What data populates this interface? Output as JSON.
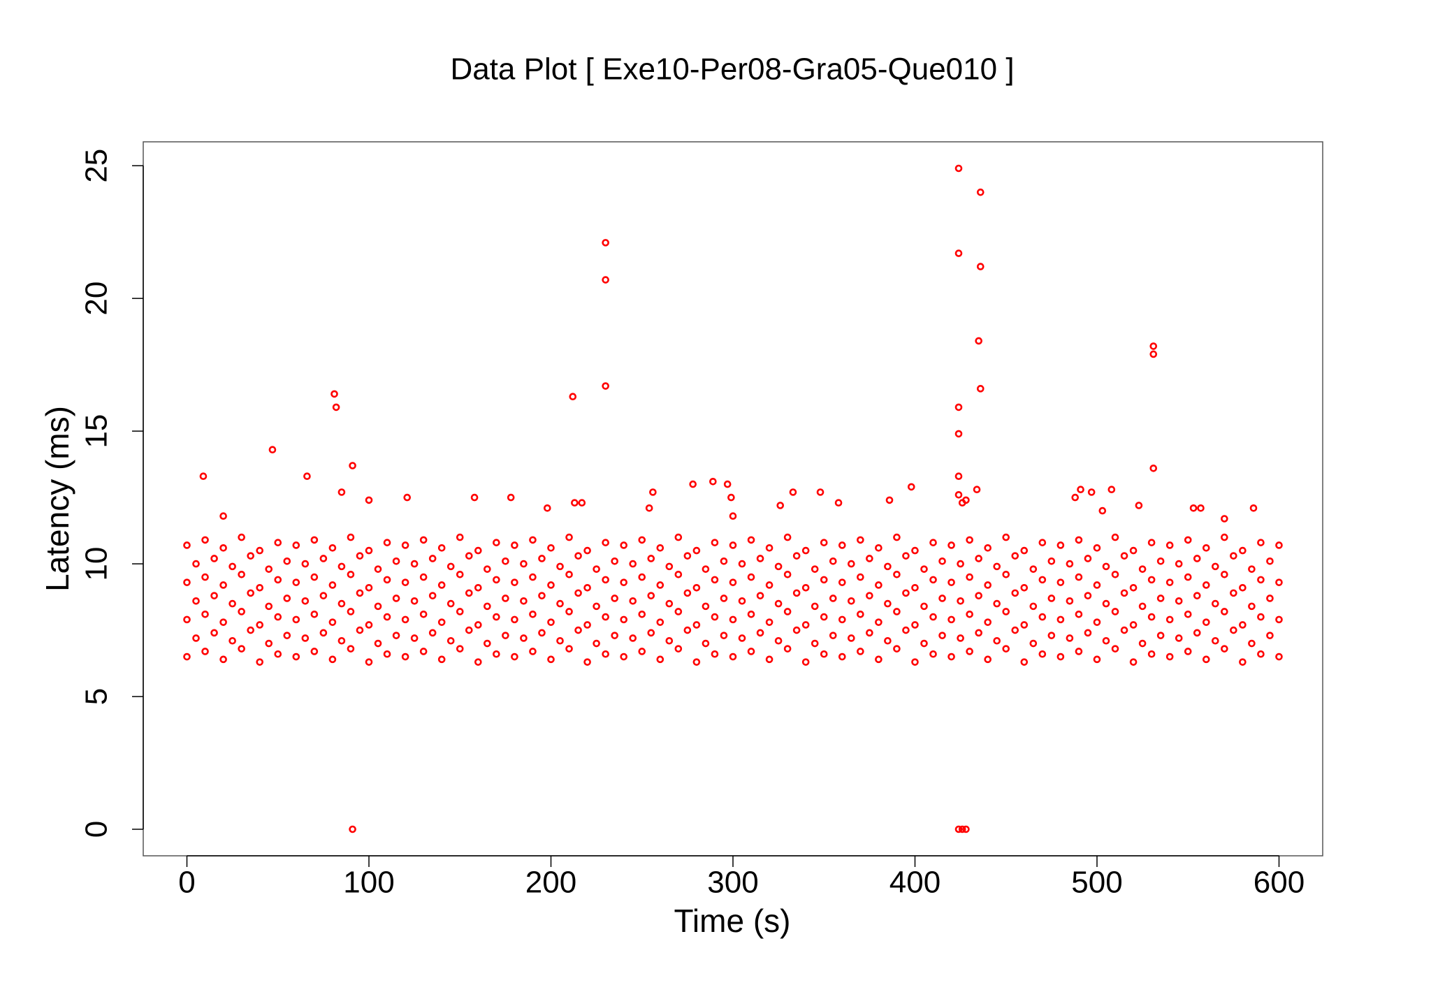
{
  "chart_data": {
    "type": "scatter",
    "title": "Data Plot [ Exe10-Per08-Gra05-Que010 ]",
    "xlabel": "Time (s)",
    "ylabel": "Latency (ms)",
    "color": "#ff0000",
    "xlim": [
      -24,
      624
    ],
    "ylim": [
      -1,
      25.9
    ],
    "xticks": [
      0,
      100,
      200,
      300,
      400,
      500,
      600
    ],
    "yticks": [
      0,
      5,
      10,
      15,
      20,
      25
    ],
    "x": [
      0,
      10,
      20,
      30,
      40,
      50,
      60,
      70,
      80,
      90,
      100,
      110,
      120,
      130,
      140,
      150,
      160,
      170,
      180,
      190,
      200,
      210,
      220,
      230,
      240,
      250,
      260,
      270,
      280,
      290,
      300,
      310,
      320,
      330,
      340,
      350,
      360,
      370,
      380,
      390,
      400,
      410,
      420,
      430,
      440,
      450,
      460,
      470,
      480,
      490,
      500,
      510,
      520,
      530,
      540,
      550,
      560,
      570,
      580,
      590,
      600,
      5,
      15,
      25,
      35,
      45,
      55,
      65,
      75,
      85,
      95,
      105,
      115,
      125,
      135,
      145,
      155,
      165,
      175,
      185,
      195,
      205,
      215,
      225,
      235,
      245,
      255,
      265,
      275,
      285,
      295,
      305,
      315,
      325,
      335,
      345,
      355,
      365,
      375,
      385,
      395,
      405,
      415,
      425,
      435,
      445,
      455,
      465,
      475,
      485,
      495,
      505,
      515,
      525,
      535,
      545,
      555,
      565,
      575,
      585,
      595,
      0,
      10,
      20,
      30,
      40,
      50,
      60,
      70,
      80,
      90,
      100,
      110,
      120,
      130,
      140,
      150,
      160,
      170,
      180,
      190,
      200,
      210,
      220,
      230,
      240,
      250,
      260,
      270,
      280,
      290,
      300,
      310,
      320,
      330,
      340,
      350,
      360,
      370,
      380,
      390,
      400,
      410,
      420,
      430,
      440,
      450,
      460,
      470,
      480,
      490,
      500,
      510,
      520,
      530,
      540,
      550,
      560,
      570,
      580,
      590,
      600,
      5,
      15,
      25,
      35,
      45,
      55,
      65,
      75,
      85,
      95,
      105,
      115,
      125,
      135,
      145,
      155,
      165,
      175,
      185,
      195,
      205,
      215,
      225,
      235,
      245,
      255,
      265,
      275,
      285,
      295,
      305,
      315,
      325,
      335,
      345,
      355,
      365,
      375,
      385,
      395,
      405,
      415,
      425,
      435,
      445,
      455,
      465,
      475,
      485,
      495,
      505,
      515,
      525,
      535,
      545,
      555,
      565,
      575,
      585,
      595,
      0,
      10,
      20,
      30,
      40,
      50,
      60,
      70,
      80,
      90,
      100,
      110,
      120,
      130,
      140,
      150,
      160,
      170,
      180,
      190,
      200,
      210,
      220,
      230,
      240,
      250,
      260,
      270,
      280,
      290,
      300,
      310,
      320,
      330,
      340,
      350,
      360,
      370,
      380,
      390,
      400,
      410,
      420,
      430,
      440,
      450,
      460,
      470,
      480,
      490,
      500,
      510,
      520,
      530,
      540,
      550,
      560,
      570,
      580,
      590,
      600,
      5,
      15,
      25,
      35,
      45,
      55,
      65,
      75,
      85,
      95,
      105,
      115,
      125,
      135,
      145,
      155,
      165,
      175,
      185,
      195,
      205,
      215,
      225,
      235,
      245,
      255,
      265,
      275,
      285,
      295,
      305,
      315,
      325,
      335,
      345,
      355,
      365,
      375,
      385,
      395,
      405,
      415,
      425,
      435,
      445,
      455,
      465,
      475,
      485,
      495,
      505,
      515,
      525,
      535,
      545,
      555,
      565,
      575,
      585,
      595,
      0,
      10,
      20,
      30,
      40,
      50,
      60,
      70,
      80,
      90,
      100,
      110,
      120,
      130,
      140,
      150,
      160,
      170,
      180,
      190,
      200,
      210,
      220,
      230,
      240,
      250,
      260,
      270,
      280,
      290,
      300,
      310,
      320,
      330,
      340,
      350,
      360,
      370,
      380,
      390,
      400,
      410,
      420,
      430,
      440,
      450,
      460,
      470,
      480,
      490,
      500,
      510,
      520,
      530,
      540,
      550,
      560,
      570,
      580,
      590,
      600,
      9,
      47,
      66,
      81,
      82,
      91,
      91,
      85,
      100,
      121,
      158,
      178,
      198,
      212,
      213,
      217,
      230,
      230,
      230,
      256,
      254,
      278,
      289,
      297,
      299,
      326,
      333,
      348,
      358,
      386,
      398,
      424,
      424,
      424,
      424,
      424,
      424,
      426,
      428,
      424,
      426,
      428,
      436,
      436,
      435,
      436,
      434,
      488,
      491,
      497,
      503,
      508,
      523,
      531,
      531,
      531,
      553,
      557,
      586,
      20,
      300,
      570
    ],
    "values": [
      6.5,
      6.7,
      6.4,
      6.8,
      6.3,
      6.6,
      6.5,
      6.7,
      6.4,
      6.8,
      6.3,
      6.6,
      6.5,
      6.7,
      6.4,
      6.8,
      6.3,
      6.6,
      6.5,
      6.7,
      6.4,
      6.8,
      6.3,
      6.6,
      6.5,
      6.7,
      6.4,
      6.8,
      6.3,
      6.6,
      6.5,
      6.7,
      6.4,
      6.8,
      6.3,
      6.6,
      6.5,
      6.7,
      6.4,
      6.8,
      6.3,
      6.6,
      6.5,
      6.7,
      6.4,
      6.8,
      6.3,
      6.6,
      6.5,
      6.7,
      6.4,
      6.8,
      6.3,
      6.6,
      6.5,
      6.7,
      6.4,
      6.8,
      6.3,
      6.6,
      6.5,
      7.2,
      7.4,
      7.1,
      7.5,
      7.0,
      7.3,
      7.2,
      7.4,
      7.1,
      7.5,
      7.0,
      7.3,
      7.2,
      7.4,
      7.1,
      7.5,
      7.0,
      7.3,
      7.2,
      7.4,
      7.1,
      7.5,
      7.0,
      7.3,
      7.2,
      7.4,
      7.1,
      7.5,
      7.0,
      7.3,
      7.2,
      7.4,
      7.1,
      7.5,
      7.0,
      7.3,
      7.2,
      7.4,
      7.1,
      7.5,
      7.0,
      7.3,
      7.2,
      7.4,
      7.1,
      7.5,
      7.0,
      7.3,
      7.2,
      7.4,
      7.1,
      7.5,
      7.0,
      7.3,
      7.2,
      7.4,
      7.1,
      7.5,
      7.0,
      7.3,
      7.9,
      8.1,
      7.8,
      8.2,
      7.7,
      8.0,
      7.9,
      8.1,
      7.8,
      8.2,
      7.7,
      8.0,
      7.9,
      8.1,
      7.8,
      8.2,
      7.7,
      8.0,
      7.9,
      8.1,
      7.8,
      8.2,
      7.7,
      8.0,
      7.9,
      8.1,
      7.8,
      8.2,
      7.7,
      8.0,
      7.9,
      8.1,
      7.8,
      8.2,
      7.7,
      8.0,
      7.9,
      8.1,
      7.8,
      8.2,
      7.7,
      8.0,
      7.9,
      8.1,
      7.8,
      8.2,
      7.7,
      8.0,
      7.9,
      8.1,
      7.8,
      8.2,
      7.7,
      8.0,
      7.9,
      8.1,
      7.8,
      8.2,
      7.7,
      8.0,
      7.9,
      8.6,
      8.8,
      8.5,
      8.9,
      8.4,
      8.7,
      8.6,
      8.8,
      8.5,
      8.9,
      8.4,
      8.7,
      8.6,
      8.8,
      8.5,
      8.9,
      8.4,
      8.7,
      8.6,
      8.8,
      8.5,
      8.9,
      8.4,
      8.7,
      8.6,
      8.8,
      8.5,
      8.9,
      8.4,
      8.7,
      8.6,
      8.8,
      8.5,
      8.9,
      8.4,
      8.7,
      8.6,
      8.8,
      8.5,
      8.9,
      8.4,
      8.7,
      8.6,
      8.8,
      8.5,
      8.9,
      8.4,
      8.7,
      8.6,
      8.8,
      8.5,
      8.9,
      8.4,
      8.7,
      8.6,
      8.8,
      8.5,
      8.9,
      8.4,
      8.7,
      9.3,
      9.5,
      9.2,
      9.6,
      9.1,
      9.4,
      9.3,
      9.5,
      9.2,
      9.6,
      9.1,
      9.4,
      9.3,
      9.5,
      9.2,
      9.6,
      9.1,
      9.4,
      9.3,
      9.5,
      9.2,
      9.6,
      9.1,
      9.4,
      9.3,
      9.5,
      9.2,
      9.6,
      9.1,
      9.4,
      9.3,
      9.5,
      9.2,
      9.6,
      9.1,
      9.4,
      9.3,
      9.5,
      9.2,
      9.6,
      9.1,
      9.4,
      9.3,
      9.5,
      9.2,
      9.6,
      9.1,
      9.4,
      9.3,
      9.5,
      9.2,
      9.6,
      9.1,
      9.4,
      9.3,
      9.5,
      9.2,
      9.6,
      9.1,
      9.4,
      9.3,
      10.0,
      10.2,
      9.9,
      10.3,
      9.8,
      10.1,
      10.0,
      10.2,
      9.9,
      10.3,
      9.8,
      10.1,
      10.0,
      10.2,
      9.9,
      10.3,
      9.8,
      10.1,
      10.0,
      10.2,
      9.9,
      10.3,
      9.8,
      10.1,
      10.0,
      10.2,
      9.9,
      10.3,
      9.8,
      10.1,
      10.0,
      10.2,
      9.9,
      10.3,
      9.8,
      10.1,
      10.0,
      10.2,
      9.9,
      10.3,
      9.8,
      10.1,
      10.0,
      10.2,
      9.9,
      10.3,
      9.8,
      10.1,
      10.0,
      10.2,
      9.9,
      10.3,
      9.8,
      10.1,
      10.0,
      10.2,
      9.9,
      10.3,
      9.8,
      10.1,
      10.7,
      10.9,
      10.6,
      11.0,
      10.5,
      10.8,
      10.7,
      10.9,
      10.6,
      11.0,
      10.5,
      10.8,
      10.7,
      10.9,
      10.6,
      11.0,
      10.5,
      10.8,
      10.7,
      10.9,
      10.6,
      11.0,
      10.5,
      10.8,
      10.7,
      10.9,
      10.6,
      11.0,
      10.5,
      10.8,
      10.7,
      10.9,
      10.6,
      11.0,
      10.5,
      10.8,
      10.7,
      10.9,
      10.6,
      11.0,
      10.5,
      10.8,
      10.7,
      10.9,
      10.6,
      11.0,
      10.5,
      10.8,
      10.7,
      10.9,
      10.6,
      11.0,
      10.5,
      10.8,
      10.7,
      10.9,
      10.6,
      11.0,
      10.5,
      10.8,
      10.7,
      13.3,
      14.3,
      13.3,
      16.4,
      15.9,
      13.7,
      0,
      12.7,
      12.4,
      12.5,
      12.5,
      12.5,
      12.1,
      16.3,
      12.3,
      12.3,
      22.1,
      20.7,
      16.7,
      12.7,
      12.1,
      13.0,
      13.1,
      13.0,
      12.5,
      12.2,
      12.7,
      12.7,
      12.3,
      12.4,
      12.9,
      24.9,
      21.7,
      15.9,
      14.9,
      13.3,
      12.6,
      12.3,
      12.4,
      0,
      0,
      0,
      24.0,
      21.2,
      18.4,
      16.6,
      12.8,
      12.5,
      12.8,
      12.7,
      12.0,
      12.8,
      12.2,
      18.2,
      17.9,
      13.6,
      12.1,
      12.1,
      12.1,
      11.8,
      11.8,
      11.7
    ]
  }
}
